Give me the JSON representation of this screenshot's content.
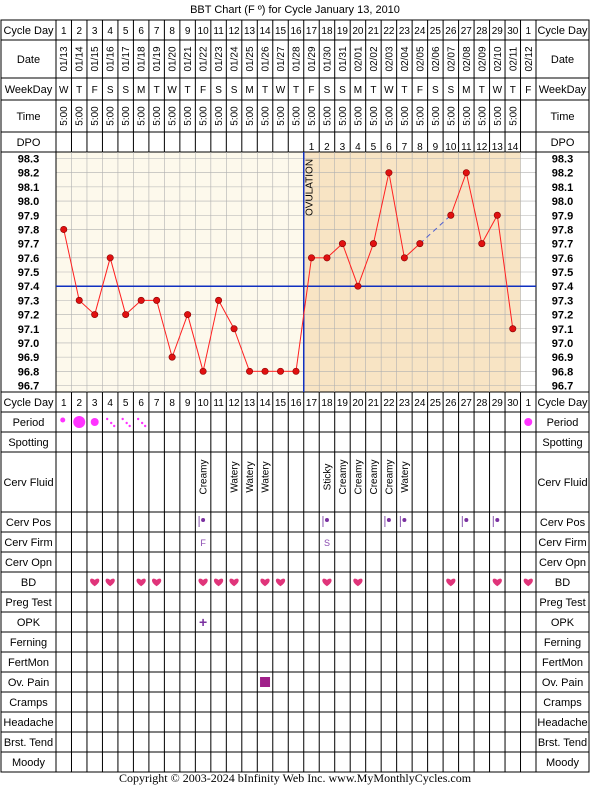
{
  "title": "BBT Chart (F º) for Cycle January 13, 2010",
  "footer": "Copyright © 2003-2024 bInfinity Web Inc.     www.MyMonthlyCycles.com",
  "colors": {
    "grid": "#000000",
    "bg_pre": "#fdf9ec",
    "bg_post": "#f8e4c4",
    "temp_line": "#ff2020",
    "temp_point": "#e01010",
    "coverline": "#1030c0",
    "ovulation_line": "#1030c0",
    "heart": "#e0347a",
    "period": "#ff33ff",
    "pain": "#a0208a",
    "opk": "#7a30a0"
  },
  "chart_data": {
    "type": "line",
    "title": "BBT Chart (F º) for Cycle January 13, 2010",
    "xlabel": "Cycle Day",
    "ylabel": "",
    "cycle_days": [
      1,
      2,
      3,
      4,
      5,
      6,
      7,
      8,
      9,
      10,
      11,
      12,
      13,
      14,
      15,
      16,
      17,
      18,
      19,
      20,
      21,
      22,
      23,
      24,
      25,
      26,
      27,
      28,
      29,
      30,
      1
    ],
    "dates": [
      "01/13",
      "01/14",
      "01/15",
      "01/16",
      "01/17",
      "01/18",
      "01/19",
      "01/20",
      "01/21",
      "01/22",
      "01/23",
      "01/24",
      "01/25",
      "01/26",
      "01/27",
      "01/28",
      "01/29",
      "01/30",
      "01/31",
      "02/01",
      "02/02",
      "02/03",
      "02/04",
      "02/05",
      "02/06",
      "02/07",
      "02/08",
      "02/09",
      "02/10",
      "02/11",
      "02/12"
    ],
    "weekdays": [
      "W",
      "T",
      "F",
      "S",
      "S",
      "M",
      "T",
      "W",
      "T",
      "F",
      "S",
      "S",
      "M",
      "T",
      "W",
      "T",
      "F",
      "S",
      "S",
      "M",
      "T",
      "W",
      "T",
      "F",
      "S",
      "S",
      "M",
      "T",
      "W",
      "T",
      "F"
    ],
    "times": [
      "5:00",
      "5:00",
      "5:00",
      "5:00",
      "5:00",
      "5:00",
      "5:00",
      "5:00",
      "5:00",
      "5:00",
      "5:00",
      "5:00",
      "5:00",
      "5:00",
      "5:00",
      "5:00",
      "5:00",
      "5:00",
      "5:00",
      "5:00",
      "5:00",
      "5:00",
      "5:00",
      "5:00",
      "5:00",
      "5:00",
      "5:00",
      "5:00",
      "5:00",
      "5:00",
      ""
    ],
    "dpo": [
      "",
      "",
      "",
      "",
      "",
      "",
      "",
      "",
      "",
      "",
      "",
      "",
      "",
      "",
      "",
      "",
      "1",
      "2",
      "3",
      "4",
      "5",
      "6",
      "7",
      "8",
      "9",
      "10",
      "11",
      "12",
      "13",
      "14",
      ""
    ],
    "y_ticks": [
      "98.3",
      "98.2",
      "98.1",
      "98.0",
      "97.9",
      "97.8",
      "97.7",
      "97.6",
      "97.5",
      "97.4",
      "97.3",
      "97.2",
      "97.1",
      "97.0",
      "96.9",
      "96.8",
      "96.7"
    ],
    "ylim": [
      96.7,
      98.3
    ],
    "temps": [
      97.8,
      97.3,
      97.2,
      97.6,
      97.2,
      97.3,
      97.3,
      96.9,
      97.2,
      96.8,
      97.3,
      97.1,
      96.8,
      96.8,
      96.8,
      96.8,
      97.6,
      97.6,
      97.7,
      97.4,
      97.7,
      98.2,
      97.6,
      97.7,
      null,
      97.9,
      98.2,
      97.7,
      97.9,
      97.1,
      null
    ],
    "coverline": 97.4,
    "ovulation_day": 16,
    "ovulation_label": "OVULATION",
    "dashed_segments": [
      [
        24,
        26
      ]
    ],
    "grid": true
  },
  "rows": [
    {
      "label": "Period"
    },
    {
      "label": "Spotting"
    },
    {
      "label": "Cerv Fluid"
    },
    {
      "label": "Cerv Pos"
    },
    {
      "label": "Cerv Firm"
    },
    {
      "label": "Cerv Opn"
    },
    {
      "label": "BD"
    },
    {
      "label": "Preg Test"
    },
    {
      "label": "OPK"
    },
    {
      "label": "Ferning"
    },
    {
      "label": "FertMon"
    },
    {
      "label": "Ov. Pain"
    },
    {
      "label": "Cramps"
    },
    {
      "label": "Headache"
    },
    {
      "label": "Brst. Tend"
    },
    {
      "label": "Moody"
    }
  ],
  "header_labels": {
    "cycle_day": "Cycle Day",
    "date": "Date",
    "weekday": "WeekDay",
    "time": "Time",
    "dpo": "DPO"
  },
  "period": [
    {
      "day": 1,
      "kind": "small-dot"
    },
    {
      "day": 2,
      "kind": "big-dot"
    },
    {
      "day": 3,
      "kind": "med-dot"
    },
    {
      "day": 4,
      "kind": "spots-3"
    },
    {
      "day": 5,
      "kind": "spots-3"
    },
    {
      "day": 6,
      "kind": "spots-3"
    },
    {
      "day": 31,
      "kind": "med-dot"
    }
  ],
  "cerv_fluid": [
    {
      "day": 10,
      "text": "Creamy"
    },
    {
      "day": 12,
      "text": "Watery"
    },
    {
      "day": 13,
      "text": "Watery"
    },
    {
      "day": 14,
      "text": "Watery"
    },
    {
      "day": 18,
      "text": "Sticky"
    },
    {
      "day": 19,
      "text": "Creamy"
    },
    {
      "day": 20,
      "text": "Creamy"
    },
    {
      "day": 21,
      "text": "Creamy"
    },
    {
      "day": 22,
      "text": "Creamy"
    },
    {
      "day": 23,
      "text": "Watery"
    }
  ],
  "cerv_pos": [
    10,
    18,
    22,
    23,
    27,
    29
  ],
  "cerv_firm": [
    {
      "day": 10,
      "text": "F"
    },
    {
      "day": 18,
      "text": "S"
    }
  ],
  "bd": [
    3,
    4,
    6,
    7,
    10,
    11,
    12,
    14,
    15,
    18,
    20,
    26,
    29,
    31
  ],
  "opk": [
    {
      "day": 10,
      "text": "+"
    }
  ],
  "ov_pain": [
    14
  ]
}
